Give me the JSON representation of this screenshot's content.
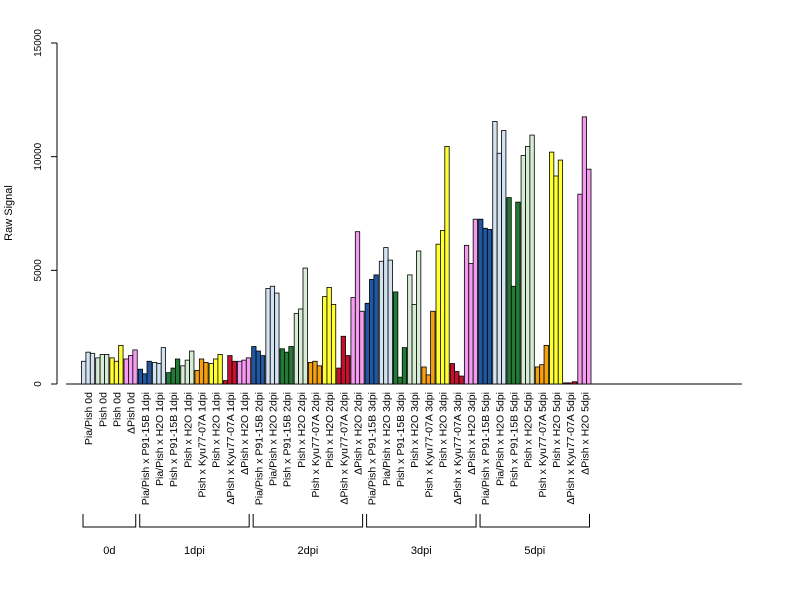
{
  "chart_data": {
    "type": "bar",
    "title": "",
    "xlabel": "",
    "ylabel": "Raw Signal",
    "ylim": [
      0,
      15000
    ],
    "yticks": [
      0,
      5000,
      10000,
      15000
    ],
    "grid": false,
    "legend": "none",
    "categories": [
      "Pia/Pish 0d",
      "Pish 0d",
      "Pish 0d",
      "ΔPish 0d",
      "Pia/Pish x P91-15B 1dpi",
      "Pia/Pish x H2O 1dpi",
      "Pish x P91-15B 1dpi",
      "Pish x H2O 1dpi",
      "Pish x Kyu77-07A 1dpi",
      "Pish x H2O 1dpi",
      "ΔPish x Kyu77-07A 1dpi",
      "ΔPish x H2O 1dpi",
      "Pia/Pish x P91-15B 2dpi",
      "Pia/Pish x H2O 2dpi",
      "Pish x P91-15B 2dpi",
      "Pish x H2O 2dpi",
      "Pish x Kyu77-07A 2dpi",
      "Pish x H2O 2dpi",
      "ΔPish x Kyu77-07A 2dpi",
      "ΔPish x H2O 2dpi",
      "Pia/Pish x P91-15B 3dpi",
      "Pia/Pish x H2O 3dpi",
      "Pish x P91-15B 3dpi",
      "Pish x H2O 3dpi",
      "Pish x Kyu77-07A 3dpi",
      "Pish x H2O 3dpi",
      "ΔPish x Kyu77-07A 3dpi",
      "ΔPish x H2O 3dpi",
      "Pia/Pish x P91-15B 5dpi",
      "Pia/Pish x H2O 5dpi",
      "Pish x P91-15B 5dpi",
      "Pish x H2O 5dpi",
      "Pish x Kyu77-07A 5dpi",
      "Pish x H2O 5dpi",
      "ΔPish x Kyu77-07A 5dpi",
      "ΔPish x H2O 5dpi"
    ],
    "bar_colors": [
      "#d4e3f2",
      "#d7ecd4",
      "#ffff33",
      "#f59cf0",
      "#1f57a0",
      "#d4e3f2",
      "#237a36",
      "#d7ecd4",
      "#f5a00f",
      "#ffff33",
      "#c8102e",
      "#f59cf0",
      "#1f57a0",
      "#d4e3f2",
      "#237a36",
      "#d7ecd4",
      "#f5a00f",
      "#ffff33",
      "#c8102e",
      "#f59cf0",
      "#1f57a0",
      "#d4e3f2",
      "#237a36",
      "#d7ecd4",
      "#f5a00f",
      "#ffff33",
      "#c8102e",
      "#f59cf0",
      "#1f57a0",
      "#d4e3f2",
      "#237a36",
      "#d7ecd4",
      "#f5a00f",
      "#ffff33",
      "#c8102e",
      "#f59cf0"
    ],
    "values": [
      [
        1000,
        1400,
        1350
      ],
      [
        1150,
        1300,
        1300
      ],
      [
        1150,
        1000,
        1700
      ],
      [
        1100,
        1250,
        1500
      ],
      [
        650,
        450,
        1000
      ],
      [
        950,
        900,
        1600
      ],
      [
        500,
        700,
        1100
      ],
      [
        800,
        1050,
        1450
      ],
      [
        600,
        1100,
        950
      ],
      [
        900,
        1100,
        1300
      ],
      [
        150,
        1250,
        1000
      ],
      [
        1000,
        1050,
        1150
      ],
      [
        1650,
        1450,
        1250
      ],
      [
        4200,
        4300,
        4000
      ],
      [
        1550,
        1400,
        1650
      ],
      [
        3100,
        3300,
        5100
      ],
      [
        950,
        1000,
        800
      ],
      [
        3850,
        4250,
        3500
      ],
      [
        700,
        2100,
        1250
      ],
      [
        3800,
        6700,
        3200
      ],
      [
        3550,
        4600,
        4800
      ],
      [
        5400,
        6000,
        5450
      ],
      [
        4050,
        300,
        1600
      ],
      [
        4800,
        3500,
        5850
      ],
      [
        750,
        400,
        3200
      ],
      [
        6150,
        6750,
        10450
      ],
      [
        900,
        550,
        350
      ],
      [
        6100,
        5300,
        7250
      ],
      [
        7250,
        6850,
        6800
      ],
      [
        11550,
        10150,
        11150
      ],
      [
        8200,
        4300,
        8000
      ],
      [
        10050,
        10450,
        10950
      ],
      [
        750,
        850,
        1700
      ],
      [
        10200,
        9150,
        9850
      ],
      [
        50,
        50,
        100
      ],
      [
        8350,
        11750,
        9450
      ]
    ],
    "groups": [
      {
        "label": "0d",
        "start": 0,
        "end": 3
      },
      {
        "label": "1dpi",
        "start": 4,
        "end": 11
      },
      {
        "label": "2dpi",
        "start": 12,
        "end": 19
      },
      {
        "label": "3dpi",
        "start": 20,
        "end": 27
      },
      {
        "label": "5dpi",
        "start": 28,
        "end": 35
      }
    ]
  }
}
